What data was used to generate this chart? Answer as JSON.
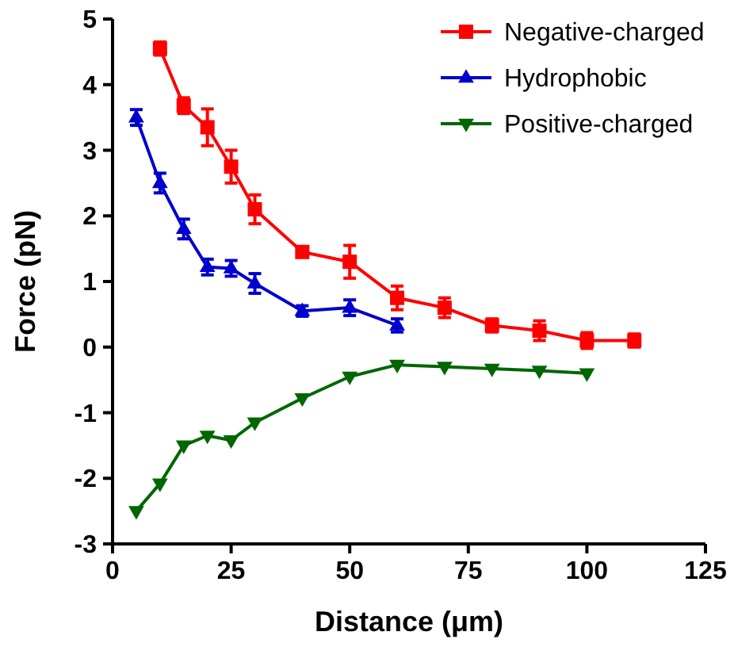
{
  "chart_data": {
    "type": "line",
    "xlabel": "Distance (μm)",
    "ylabel": "Force (pN)",
    "xlim": [
      0,
      125
    ],
    "xticks": [
      0,
      25,
      50,
      75,
      100,
      125
    ],
    "ylim": [
      -3,
      5
    ],
    "yticks": [
      -3,
      -2,
      -1,
      0,
      1,
      2,
      3,
      4,
      5
    ],
    "grid": false,
    "legend": "top right",
    "series": [
      {
        "name": "Negative-charged",
        "color": "#ff0000",
        "marker": "square",
        "x": [
          10,
          15,
          20,
          25,
          30,
          40,
          50,
          60,
          70,
          80,
          90,
          100,
          110
        ],
        "values": [
          4.55,
          3.68,
          3.35,
          2.75,
          2.1,
          1.45,
          1.3,
          0.75,
          0.6,
          0.33,
          0.25,
          0.1,
          0.1
        ],
        "errors": [
          0.1,
          0.12,
          0.28,
          0.25,
          0.22,
          null,
          0.25,
          0.18,
          0.15,
          0.1,
          0.15,
          0.12,
          0.1
        ]
      },
      {
        "name": "Hydrophobic",
        "color": "#0000cc",
        "marker": "triangle",
        "x": [
          5,
          10,
          15,
          20,
          25,
          30,
          40,
          50,
          60
        ],
        "values": [
          3.5,
          2.5,
          1.8,
          1.22,
          1.2,
          0.97,
          0.55,
          0.6,
          0.33
        ],
        "errors": [
          0.12,
          0.15,
          0.15,
          0.12,
          0.12,
          0.15,
          0.08,
          0.12,
          0.1
        ]
      },
      {
        "name": "Positive-charged",
        "color": "#006600",
        "marker": "triangle-down",
        "x": [
          5,
          10,
          15,
          20,
          25,
          30,
          40,
          50,
          60,
          70,
          80,
          90,
          100
        ],
        "values": [
          -2.5,
          -2.08,
          -1.5,
          -1.35,
          -1.42,
          -1.15,
          -0.78,
          -0.45,
          -0.27,
          -0.3,
          -0.33,
          -0.36,
          -0.4
        ]
      }
    ]
  }
}
